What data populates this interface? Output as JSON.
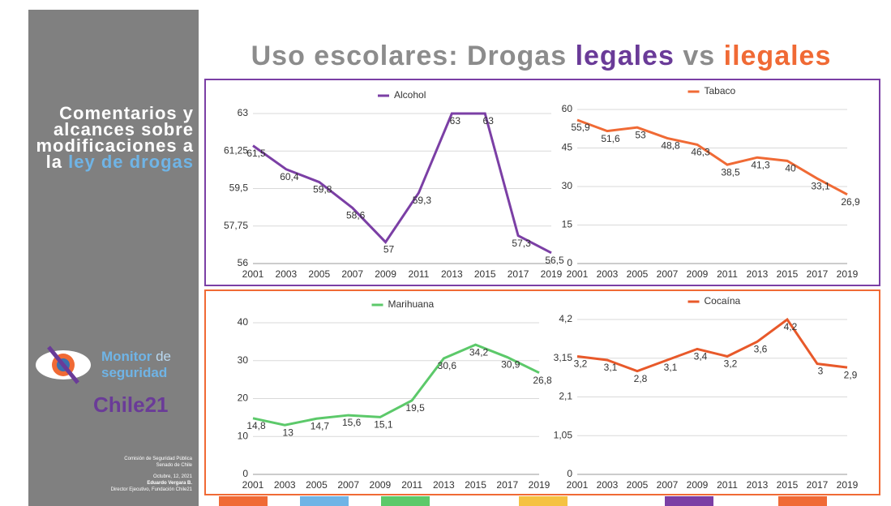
{
  "sidebar": {
    "heading": "Comentarios y alcances sobre modificaciones a la",
    "heading_highlight": "ley de drogas",
    "logo_line1_a": "Monitor",
    "logo_line1_b": "de",
    "logo_line2": "seguridad",
    "logo_brand": "Chile21",
    "footer": [
      "Comisión de Seguridad Pública",
      "Senado de Chile",
      "Octubre, 12, 2021",
      "Eduardo Vergara B.",
      "Director Ejecutivo, Fundación Chile21"
    ]
  },
  "header": {
    "title_a": "Uso escolares: Drogas",
    "title_b": "legales",
    "title_c": "vs",
    "title_d": "ilegales"
  },
  "chart_data": [
    {
      "type": "line",
      "categories": [
        "2001",
        "2003",
        "2005",
        "2007",
        "2009",
        "2011",
        "2013",
        "2015",
        "2017",
        "2019"
      ],
      "series": [
        {
          "name": "Alcohol",
          "color": "#7b3fa5",
          "values": [
            61.5,
            60.4,
            59.8,
            58.6,
            57,
            59.3,
            63,
            63,
            57.3,
            56.5
          ],
          "value_labels": [
            "61,5",
            "60,4",
            "59,8",
            "58,6",
            "57",
            "59,3",
            "63",
            "63",
            "57,3",
            "56,5"
          ]
        }
      ],
      "ylim": [
        56,
        63
      ],
      "yticks": [
        56,
        {
          "value": 57.75,
          "label": "57,75"
        },
        {
          "value": 59.5,
          "label": "59,5"
        },
        {
          "value": 61.25,
          "label": "61,25"
        },
        63
      ],
      "grid": true
    },
    {
      "type": "line",
      "categories": [
        "2001",
        "2003",
        "2005",
        "2007",
        "2009",
        "2011",
        "2013",
        "2015",
        "2017",
        "2019"
      ],
      "series": [
        {
          "name": "Tabaco",
          "color": "#f06a35",
          "values": [
            55.9,
            51.6,
            53,
            48.8,
            46.3,
            38.5,
            41.3,
            40,
            33.1,
            26.9
          ],
          "value_labels": [
            "55,9",
            "51,6",
            "53",
            "48,8",
            "46,3",
            "38,5",
            "41,3",
            "40",
            "33,1",
            "26,9"
          ]
        }
      ],
      "ylim": [
        0,
        60
      ],
      "yticks": [
        0,
        15,
        30,
        45,
        60
      ],
      "grid": true
    },
    {
      "type": "line",
      "categories": [
        "2001",
        "2003",
        "2005",
        "2007",
        "2009",
        "2011",
        "2013",
        "2015",
        "2017",
        "2019"
      ],
      "series": [
        {
          "name": "Marihuana",
          "color": "#5cc96a",
          "values": [
            14.8,
            13,
            14.7,
            15.6,
            15.1,
            19.5,
            30.6,
            34.2,
            30.9,
            26.8
          ],
          "value_labels": [
            "14,8",
            "13",
            "14,7",
            "15,6",
            "15,1",
            "19,5",
            "30,6",
            "34,2",
            "30,9",
            "26,8"
          ]
        }
      ],
      "ylim": [
        0,
        40
      ],
      "yticks": [
        0,
        10,
        20,
        30,
        40
      ],
      "grid": true
    },
    {
      "type": "line",
      "categories": [
        "2001",
        "2003",
        "2005",
        "2007",
        "2009",
        "2011",
        "2013",
        "2015",
        "2017",
        "2019"
      ],
      "series": [
        {
          "name": "Cocaína",
          "color": "#e8592a",
          "values": [
            3.2,
            3.1,
            2.8,
            3.1,
            3.4,
            3.2,
            3.6,
            4.2,
            3,
            2.9
          ],
          "value_labels": [
            "3,2",
            "3,1",
            "2,8",
            "3,1",
            "3,4",
            "3,2",
            "3,6",
            "4,2",
            "3",
            "2,9"
          ]
        }
      ],
      "ylim": [
        0,
        4.2
      ],
      "yticks": [
        0,
        {
          "value": 1.05,
          "label": "1,05"
        },
        {
          "value": 2.1,
          "label": "2,1"
        },
        {
          "value": 3.15,
          "label": "3,15"
        },
        {
          "value": 4.2,
          "label": "4,2"
        }
      ],
      "grid": true
    }
  ]
}
